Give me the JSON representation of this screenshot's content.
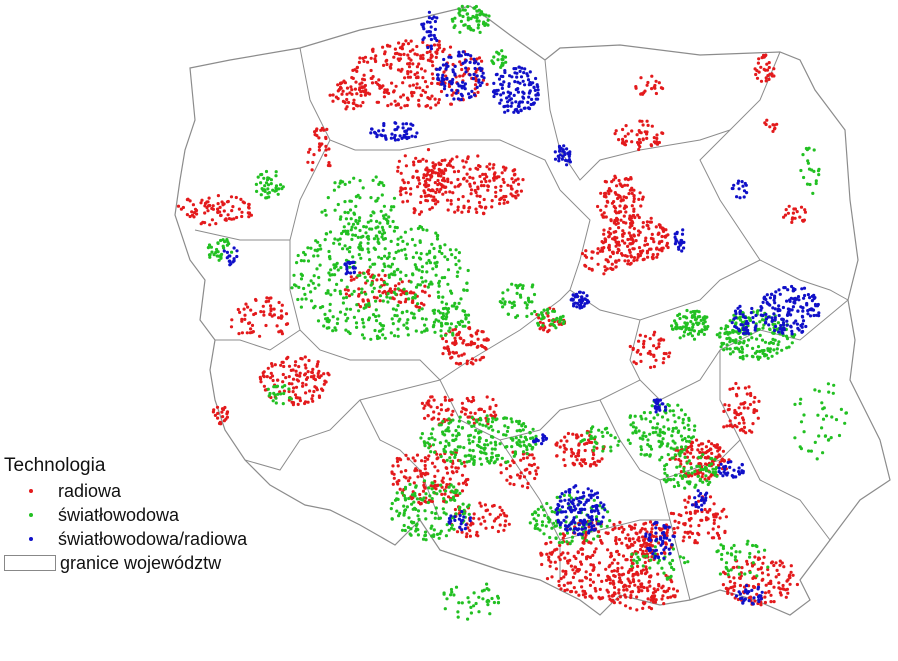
{
  "legend": {
    "title": "Technologia",
    "items": [
      {
        "label": "radiowa",
        "color": "#e31a1c"
      },
      {
        "label": "światłowodowa",
        "color": "#22c022"
      },
      {
        "label": "światłowodowa/radiowa",
        "color": "#1010c8"
      }
    ],
    "boundary_label": "granice województw",
    "boundary_color": "#8c8c8c"
  }
}
